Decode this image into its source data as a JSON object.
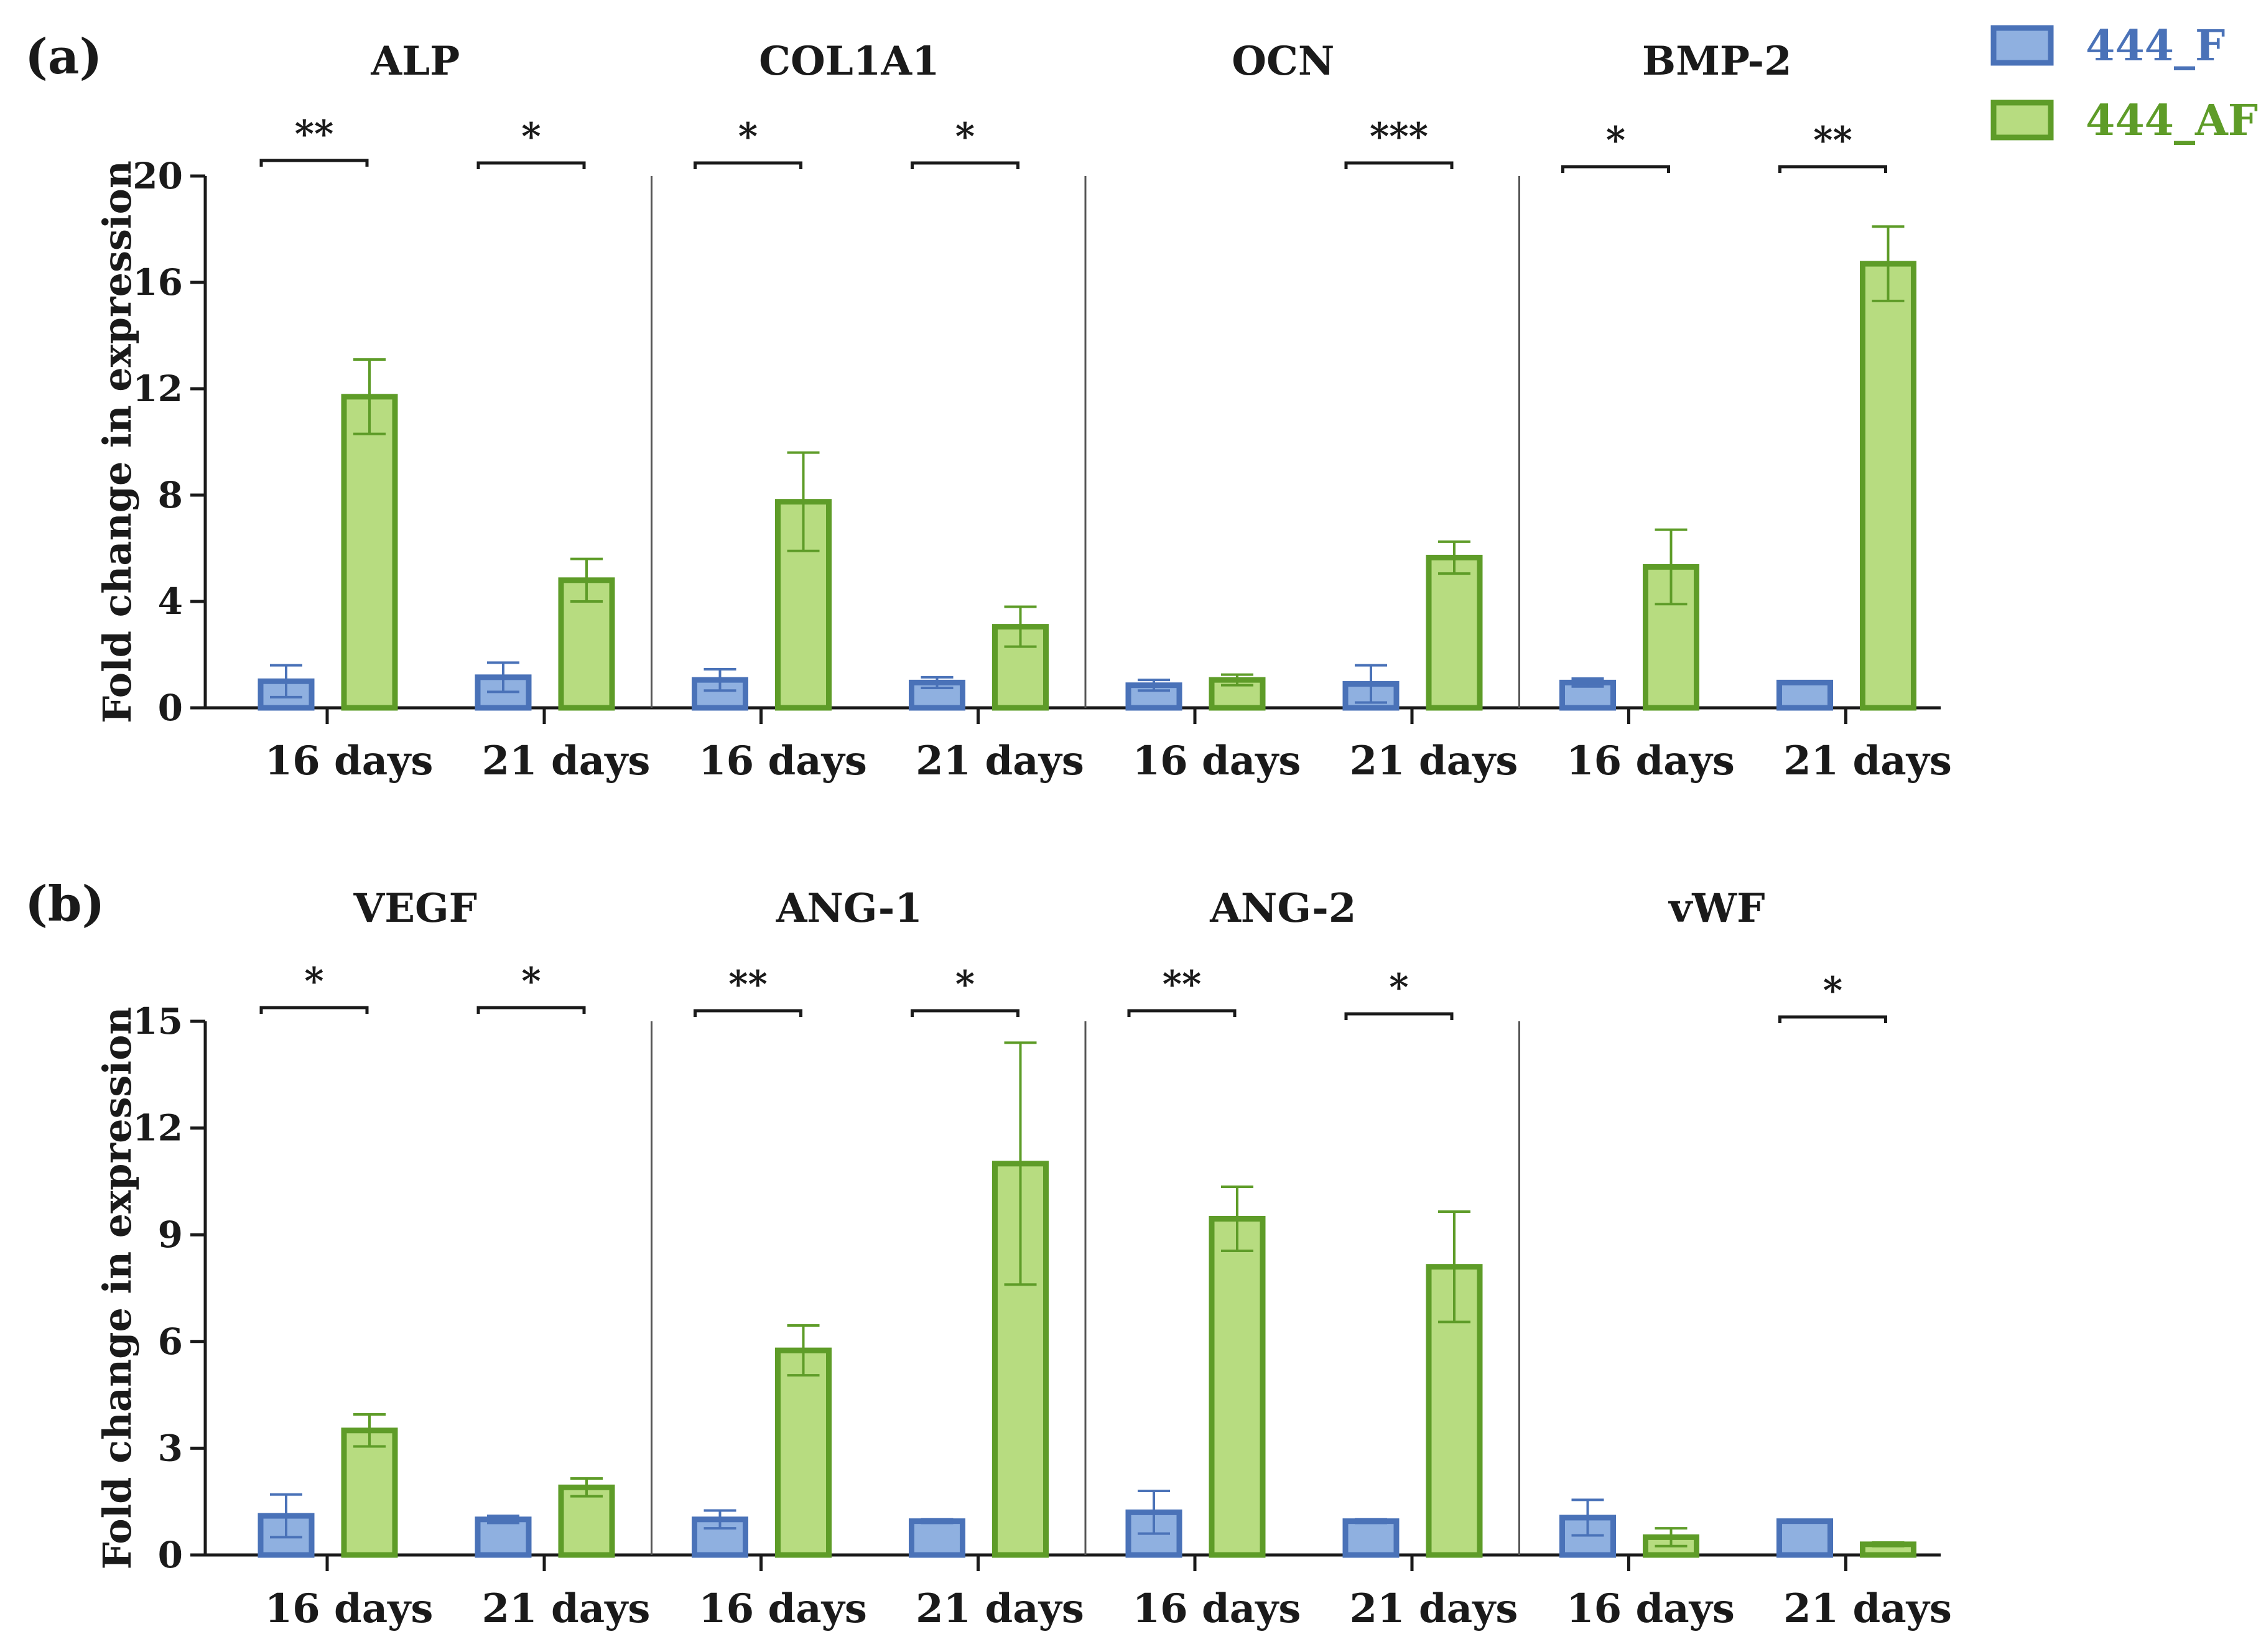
{
  "legend": {
    "entries": [
      {
        "name": "444_F",
        "color": "#4a72b8",
        "fill": "#8fb0e0"
      },
      {
        "name": "444_AF",
        "color": "#5e9c28",
        "fill": "#b7dc80"
      }
    ],
    "placement": "top-right"
  },
  "chart_data": [
    {
      "type": "bar",
      "panel_label": "(a)",
      "ylabel": "Fold change in expression",
      "ylim": [
        0,
        20
      ],
      "yticks": [
        0,
        4,
        8,
        12,
        16,
        20
      ],
      "groups": [
        {
          "title": "ALP",
          "categories": [
            "16 days",
            "21 days"
          ],
          "series": [
            {
              "name": "444_F",
              "values": [
                1.0,
                1.15
              ],
              "errors": [
                0.6,
                0.55
              ]
            },
            {
              "name": "444_AF",
              "values": [
                11.7,
                4.8
              ],
              "errors": [
                1.4,
                0.8
              ]
            }
          ],
          "significance": [
            "**",
            "*"
          ]
        },
        {
          "title": "COL1A1",
          "categories": [
            "16 days",
            "21 days"
          ],
          "series": [
            {
              "name": "444_F",
              "values": [
                1.05,
                0.95
              ],
              "errors": [
                0.4,
                0.2
              ]
            },
            {
              "name": "444_AF",
              "values": [
                7.75,
                3.05
              ],
              "errors": [
                1.85,
                0.75
              ]
            }
          ],
          "significance": [
            "*",
            "*"
          ]
        },
        {
          "title": "OCN",
          "categories": [
            "16 days",
            "21 days"
          ],
          "series": [
            {
              "name": "444_F",
              "values": [
                0.85,
                0.9
              ],
              "errors": [
                0.2,
                0.7
              ]
            },
            {
              "name": "444_AF",
              "values": [
                1.05,
                5.65
              ],
              "errors": [
                0.2,
                0.6
              ]
            }
          ],
          "significance": [
            "",
            "***"
          ]
        },
        {
          "title": "BMP-2",
          "categories": [
            "16 days",
            "21 days"
          ],
          "series": [
            {
              "name": "444_F",
              "values": [
                0.95,
                0.95
              ],
              "errors": [
                0.15,
                0.05
              ]
            },
            {
              "name": "444_AF",
              "values": [
                5.3,
                16.7
              ],
              "errors": [
                1.4,
                1.4
              ]
            }
          ],
          "significance": [
            "*",
            "**"
          ]
        }
      ]
    },
    {
      "type": "bar",
      "panel_label": "(b)",
      "ylabel": "Fold change in expression",
      "ylim": [
        0,
        15
      ],
      "yticks": [
        0,
        3,
        6,
        9,
        12,
        15
      ],
      "groups": [
        {
          "title": "VEGF",
          "categories": [
            "16 days",
            "21 days"
          ],
          "series": [
            {
              "name": "444_F",
              "values": [
                1.1,
                1.0
              ],
              "errors": [
                0.6,
                0.1
              ]
            },
            {
              "name": "444_AF",
              "values": [
                3.5,
                1.9
              ],
              "errors": [
                0.45,
                0.25
              ]
            }
          ],
          "significance": [
            "*",
            "*"
          ]
        },
        {
          "title": "ANG-1",
          "categories": [
            "16 days",
            "21 days"
          ],
          "series": [
            {
              "name": "444_F",
              "values": [
                1.0,
                0.95
              ],
              "errors": [
                0.25,
                0.05
              ]
            },
            {
              "name": "444_AF",
              "values": [
                5.75,
                11.0
              ],
              "errors": [
                0.7,
                3.4
              ]
            }
          ],
          "significance": [
            "**",
            "*"
          ]
        },
        {
          "title": "ANG-2",
          "categories": [
            "16 days",
            "21 days"
          ],
          "series": [
            {
              "name": "444_F",
              "values": [
                1.2,
                0.95
              ],
              "errors": [
                0.6,
                0.05
              ]
            },
            {
              "name": "444_AF",
              "values": [
                9.45,
                8.1
              ],
              "errors": [
                0.9,
                1.55
              ]
            }
          ],
          "significance": [
            "**",
            "*"
          ]
        },
        {
          "title": "vWF",
          "categories": [
            "16 days",
            "21 days"
          ],
          "series": [
            {
              "name": "444_F",
              "values": [
                1.05,
                0.95
              ],
              "errors": [
                0.5,
                0.03
              ]
            },
            {
              "name": "444_AF",
              "values": [
                0.5,
                0.3
              ],
              "errors": [
                0.25,
                0.05
              ]
            }
          ],
          "significance": [
            "",
            "*"
          ]
        }
      ]
    }
  ]
}
